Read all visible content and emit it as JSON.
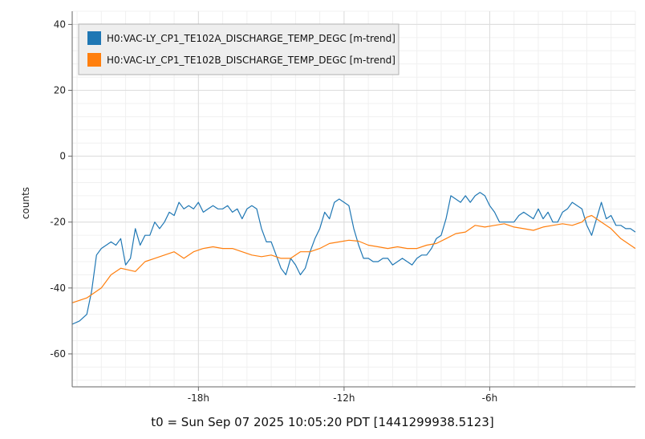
{
  "footer": "t0 = Sun Sep 07 2025 10:05:20 PDT [1441299938.5123]",
  "chart_data": {
    "type": "line",
    "ylabel": "counts",
    "xlabel": "",
    "title": "",
    "x_unit": "hours",
    "xlim": [
      -23.2,
      0
    ],
    "ylim": [
      -70,
      44
    ],
    "x_ticks": [
      {
        "value": -18,
        "label": "-18h"
      },
      {
        "value": -12,
        "label": "-12h"
      },
      {
        "value": -6,
        "label": "-6h"
      }
    ],
    "y_ticks": [
      40,
      20,
      0,
      -20,
      -40,
      -60
    ],
    "grid": true,
    "legend_position": "top-left",
    "series": [
      {
        "name": "H0:VAC-LY_CP1_TE102A_DISCHARGE_TEMP_DEGC [m-trend]",
        "color": "#1f77b4",
        "x": [
          -23.2,
          -22.9,
          -22.6,
          -22.4,
          -22.2,
          -22.0,
          -21.8,
          -21.6,
          -21.4,
          -21.2,
          -21.0,
          -20.8,
          -20.6,
          -20.4,
          -20.2,
          -20.0,
          -19.8,
          -19.6,
          -19.4,
          -19.2,
          -19.0,
          -18.8,
          -18.6,
          -18.4,
          -18.2,
          -18.0,
          -17.8,
          -17.6,
          -17.4,
          -17.2,
          -17.0,
          -16.8,
          -16.6,
          -16.4,
          -16.2,
          -16.0,
          -15.8,
          -15.6,
          -15.4,
          -15.2,
          -15.0,
          -14.8,
          -14.6,
          -14.4,
          -14.2,
          -14.0,
          -13.8,
          -13.6,
          -13.4,
          -13.2,
          -13.0,
          -12.8,
          -12.6,
          -12.4,
          -12.2,
          -12.0,
          -11.8,
          -11.6,
          -11.4,
          -11.2,
          -11.0,
          -10.8,
          -10.6,
          -10.4,
          -10.2,
          -10.0,
          -9.8,
          -9.6,
          -9.4,
          -9.2,
          -9.0,
          -8.8,
          -8.6,
          -8.4,
          -8.2,
          -8.0,
          -7.8,
          -7.6,
          -7.4,
          -7.2,
          -7.0,
          -6.8,
          -6.6,
          -6.4,
          -6.2,
          -6.0,
          -5.8,
          -5.6,
          -5.4,
          -5.2,
          -5.0,
          -4.8,
          -4.6,
          -4.4,
          -4.2,
          -4.0,
          -3.8,
          -3.6,
          -3.4,
          -3.2,
          -3.0,
          -2.8,
          -2.6,
          -2.4,
          -2.2,
          -2.0,
          -1.8,
          -1.6,
          -1.4,
          -1.2,
          -1.0,
          -0.8,
          -0.6,
          -0.4,
          -0.2,
          0.0
        ],
        "values": [
          -51,
          -50,
          -48,
          -41,
          -30,
          -28,
          -27,
          -26,
          -27,
          -25,
          -33,
          -31,
          -22,
          -27,
          -24,
          -24,
          -20,
          -22,
          -20,
          -17,
          -18,
          -14,
          -16,
          -15,
          -16,
          -14,
          -17,
          -16,
          -15,
          -16,
          -16,
          -15,
          -17,
          -16,
          -19,
          -16,
          -15,
          -16,
          -22,
          -26,
          -26,
          -30,
          -34,
          -36,
          -31,
          -33,
          -36,
          -34,
          -29,
          -25,
          -22,
          -17,
          -19,
          -14,
          -13,
          -14,
          -15,
          -22,
          -27,
          -31,
          -31,
          -32,
          -32,
          -31,
          -31,
          -33,
          -32,
          -31,
          -32,
          -33,
          -31,
          -30,
          -30,
          -28,
          -25,
          -24,
          -19,
          -12,
          -13,
          -14,
          -12,
          -14,
          -12,
          -11,
          -12,
          -15,
          -17,
          -20,
          -20,
          -20,
          -20,
          -18,
          -17,
          -18,
          -19,
          -16,
          -19,
          -17,
          -20,
          -20,
          -17,
          -16,
          -14,
          -15,
          -16,
          -21,
          -24,
          -19,
          -14,
          -19,
          -18,
          -21,
          -21,
          -22,
          -22,
          -23
        ]
      },
      {
        "name": "H0:VAC-LY_CP1_TE102B_DISCHARGE_TEMP_DEGC [m-trend]",
        "color": "#ff7f0e",
        "x": [
          -23.2,
          -22.6,
          -22.0,
          -21.6,
          -21.2,
          -20.6,
          -20.2,
          -19.8,
          -19.4,
          -19.0,
          -18.6,
          -18.2,
          -17.8,
          -17.4,
          -17.0,
          -16.6,
          -16.2,
          -15.8,
          -15.4,
          -15.0,
          -14.6,
          -14.2,
          -13.8,
          -13.4,
          -13.0,
          -12.6,
          -12.2,
          -11.8,
          -11.4,
          -11.0,
          -10.6,
          -10.2,
          -9.8,
          -9.4,
          -9.0,
          -8.6,
          -8.2,
          -7.8,
          -7.4,
          -7.0,
          -6.6,
          -6.2,
          -5.8,
          -5.4,
          -5.0,
          -4.6,
          -4.2,
          -3.8,
          -3.4,
          -3.0,
          -2.6,
          -2.2,
          -2.0,
          -1.8,
          -1.4,
          -1.0,
          -0.6,
          -0.2,
          0.0
        ],
        "values": [
          -44.5,
          -43,
          -40,
          -36,
          -34,
          -35,
          -32,
          -31,
          -30,
          -29,
          -31,
          -29,
          -28,
          -27.5,
          -28,
          -28,
          -29,
          -30,
          -30.5,
          -30,
          -31,
          -31,
          -29,
          -29,
          -28,
          -26.5,
          -26,
          -25.5,
          -25.8,
          -27,
          -27.5,
          -28,
          -27.5,
          -28,
          -28,
          -27,
          -26.5,
          -25,
          -23.5,
          -23,
          -21,
          -21.5,
          -21,
          -20.5,
          -21.5,
          -22,
          -22.5,
          -21.5,
          -21,
          -20.5,
          -21,
          -20,
          -18.5,
          -18,
          -20,
          -22,
          -25,
          -27,
          -28
        ]
      }
    ]
  }
}
